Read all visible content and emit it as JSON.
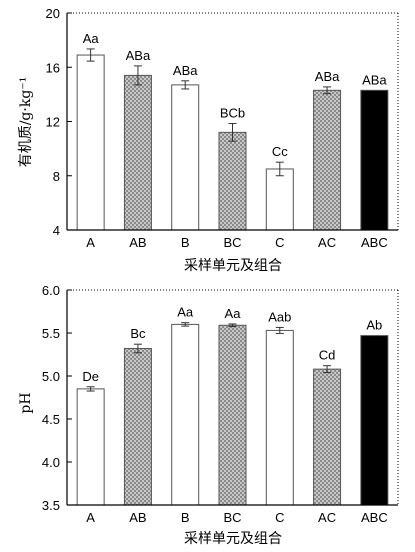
{
  "chart_data": [
    {
      "type": "bar",
      "categories": [
        "A",
        "AB",
        "B",
        "BC",
        "C",
        "AC",
        "ABC"
      ],
      "values": [
        16.9,
        15.4,
        14.7,
        11.2,
        8.5,
        14.3,
        14.3
      ],
      "errors": [
        0.45,
        0.7,
        0.3,
        0.65,
        0.5,
        0.25,
        0.0
      ],
      "sig_labels": [
        "Aa",
        "ABa",
        "ABa",
        "BCb",
        "Cc",
        "ABa",
        "ABa"
      ],
      "fills": [
        "white",
        "hatch",
        "white",
        "hatch",
        "white",
        "hatch",
        "black"
      ],
      "ylim": [
        4,
        20
      ],
      "yticks": [
        "4",
        "8",
        "12",
        "16",
        "20"
      ],
      "ylabel": "有机质/g·kg⁻¹",
      "xlabel": "采样单元及组合"
    },
    {
      "type": "bar",
      "categories": [
        "A",
        "AB",
        "B",
        "BC",
        "C",
        "AC",
        "ABC"
      ],
      "values": [
        4.85,
        5.32,
        5.6,
        5.59,
        5.53,
        5.08,
        5.47
      ],
      "errors": [
        0.025,
        0.05,
        0.02,
        0.015,
        0.035,
        0.04,
        0.0
      ],
      "sig_labels": [
        "De",
        "Bc",
        "Aa",
        "Aa",
        "Aab",
        "Cd",
        "Ab"
      ],
      "fills": [
        "white",
        "hatch",
        "white",
        "hatch",
        "white",
        "hatch",
        "black"
      ],
      "ylim": [
        3.5,
        6.0
      ],
      "yticks": [
        "3.5",
        "4.0",
        "4.5",
        "5.0",
        "5.5",
        "6.0"
      ],
      "ylabel": "pH",
      "xlabel": "采样单元及组合"
    }
  ],
  "colors": {
    "bar_white": "#ffffff",
    "bar_hatch": "#a8a8a8",
    "bar_black": "#000000",
    "axis": "#000000"
  }
}
